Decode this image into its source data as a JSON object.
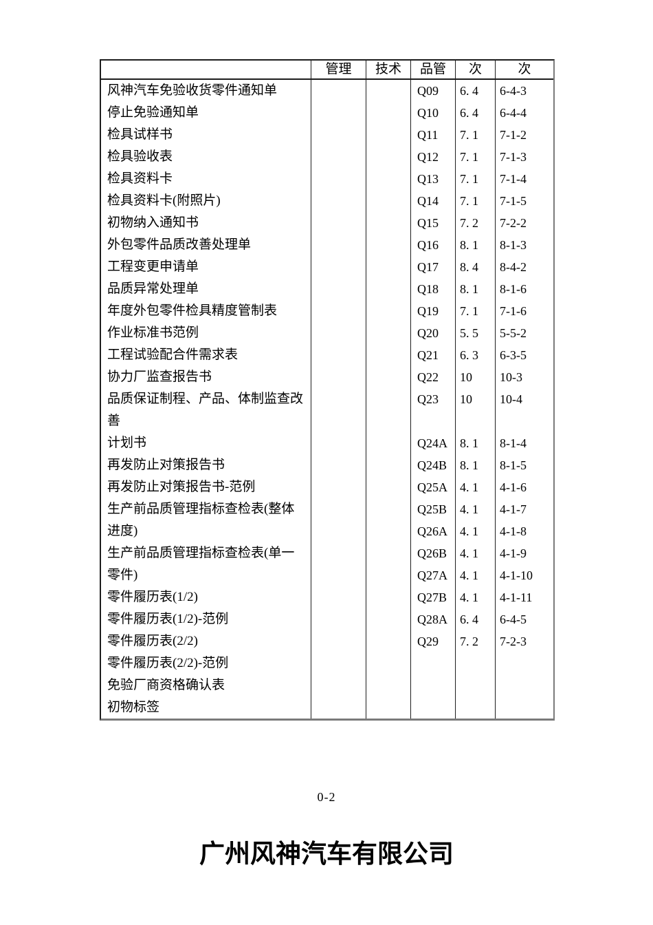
{
  "page": {
    "footer_page_number": "0-2",
    "company_title": "广州风神汽车有限公司"
  },
  "table": {
    "headers": [
      "",
      "管理",
      "技术",
      "品管",
      "次",
      "次"
    ],
    "rows": [
      {
        "name": "风神汽车免验收货零件通知单",
        "mgmt": "",
        "tech": "",
        "qc": "Q09",
        "sec": "6. 4",
        "page": "6-4-3"
      },
      {
        "name": "停止免验通知单",
        "mgmt": "",
        "tech": "",
        "qc": "Q10",
        "sec": "6. 4",
        "page": "6-4-4"
      },
      {
        "name": "检具试样书",
        "mgmt": "",
        "tech": "",
        "qc": "Q11",
        "sec": "7. 1",
        "page": "7-1-2"
      },
      {
        "name": "检具验收表",
        "mgmt": "",
        "tech": "",
        "qc": "Q12",
        "sec": "7. 1",
        "page": "7-1-3"
      },
      {
        "name": "检具资料卡",
        "mgmt": "",
        "tech": "",
        "qc": "Q13",
        "sec": "7. 1",
        "page": "7-1-4"
      },
      {
        "name": "检具资料卡(附照片)",
        "mgmt": "",
        "tech": "",
        "qc": "Q14",
        "sec": "7. 1",
        "page": "7-1-5"
      },
      {
        "name": "初物纳入通知书",
        "mgmt": "",
        "tech": "",
        "qc": "Q15",
        "sec": "7. 2",
        "page": "7-2-2"
      },
      {
        "name": "外包零件品质改善处理单",
        "mgmt": "",
        "tech": "",
        "qc": "Q16",
        "sec": "8. 1",
        "page": "8-1-3"
      },
      {
        "name": "工程变更申请单",
        "mgmt": "",
        "tech": "",
        "qc": "Q17",
        "sec": "8. 4",
        "page": "8-4-2"
      },
      {
        "name": "品质异常处理单",
        "mgmt": "",
        "tech": "",
        "qc": "Q18",
        "sec": "8. 1",
        "page": "8-1-6"
      },
      {
        "name": "年度外包零件检具精度管制表",
        "mgmt": "",
        "tech": "",
        "qc": "Q19",
        "sec": "7. 1",
        "page": "7-1-6"
      },
      {
        "name": "作业标准书范例",
        "mgmt": "",
        "tech": "",
        "qc": "Q20",
        "sec": "5. 5",
        "page": "5-5-2"
      },
      {
        "name": "工程试验配合件需求表",
        "mgmt": "",
        "tech": "",
        "qc": "Q21",
        "sec": "6. 3",
        "page": "6-3-5"
      },
      {
        "name": "协力厂监查报告书",
        "mgmt": "",
        "tech": "",
        "qc": "Q22",
        "sec": "10",
        "page": "10-3"
      },
      {
        "name": "品质保证制程、产品、体制监查改",
        "mgmt": "",
        "tech": "",
        "qc": "Q23",
        "sec": "10",
        "page": "10-4"
      },
      {
        "name": "善",
        "mgmt": "",
        "tech": "",
        "qc": "",
        "sec": "",
        "page": ""
      },
      {
        "name": "计划书",
        "mgmt": "",
        "tech": "",
        "qc": "Q24A",
        "sec": "8. 1",
        "page": "8-1-4"
      },
      {
        "name": "再发防止对策报告书",
        "mgmt": "",
        "tech": "",
        "qc": "Q24B",
        "sec": "8. 1",
        "page": "8-1-5"
      },
      {
        "name": "再发防止对策报告书-范例",
        "mgmt": "",
        "tech": "",
        "qc": "Q25A",
        "sec": "4. 1",
        "page": "4-1-6"
      },
      {
        "name": "生产前品质管理指标查检表(整体",
        "mgmt": "",
        "tech": "",
        "qc": "Q25B",
        "sec": "4. 1",
        "page": "4-1-7"
      },
      {
        "name": "进度)",
        "mgmt": "",
        "tech": "",
        "qc": "Q26A",
        "sec": "4. 1",
        "page": "4-1-8"
      },
      {
        "name": "生产前品质管理指标查检表(单一",
        "mgmt": "",
        "tech": "",
        "qc": "Q26B",
        "sec": "4. 1",
        "page": "4-1-9"
      },
      {
        "name": "零件)",
        "mgmt": "",
        "tech": "",
        "qc": "Q27A",
        "sec": "4. 1",
        "page": "4-1-10"
      },
      {
        "name": "零件履历表(1/2)",
        "mgmt": "",
        "tech": "",
        "qc": "Q27B",
        "sec": "4. 1",
        "page": "4-1-11"
      },
      {
        "name": "零件履历表(1/2)-范例",
        "mgmt": "",
        "tech": "",
        "qc": "Q28A",
        "sec": "6. 4",
        "page": "6-4-5"
      },
      {
        "name": "零件履历表(2/2)",
        "mgmt": "",
        "tech": "",
        "qc": "Q29",
        "sec": "7. 2",
        "page": "7-2-3"
      },
      {
        "name": "零件履历表(2/2)-范例",
        "mgmt": "",
        "tech": "",
        "qc": "",
        "sec": "",
        "page": ""
      },
      {
        "name": "免验厂商资格确认表",
        "mgmt": "",
        "tech": "",
        "qc": "",
        "sec": "",
        "page": ""
      },
      {
        "name": "初物标签",
        "mgmt": "",
        "tech": "",
        "qc": "",
        "sec": "",
        "page": ""
      }
    ]
  }
}
